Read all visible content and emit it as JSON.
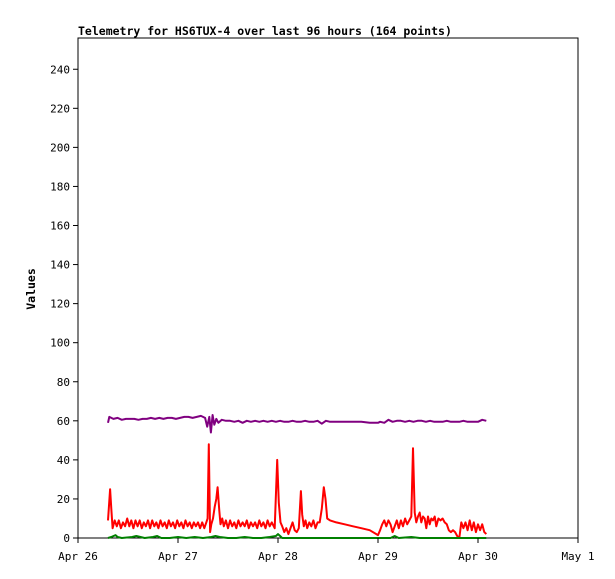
{
  "title": "Telemetry for HS6TUX-4 over last 96 hours (164 points)",
  "chart_data": {
    "type": "line",
    "title": "Telemetry for HS6TUX-4 over last 96 hours (164 points)",
    "xlabel": "",
    "ylabel": "Values",
    "xlim": [
      "2025-04-26 00:00",
      "2025-05-01 00:00"
    ],
    "ylim": [
      0,
      256
    ],
    "grid": false,
    "legend": "none",
    "x_ticks": [
      "Apr 26",
      "Apr 27",
      "Apr 28",
      "Apr 29",
      "Apr 30",
      "May 1"
    ],
    "y_ticks": [
      0,
      20,
      40,
      60,
      80,
      100,
      120,
      140,
      160,
      180,
      200,
      220,
      240
    ],
    "series": [
      {
        "color": "#800080",
        "points": [
          [
            7.2,
            59
          ],
          [
            7.5,
            62
          ],
          [
            8.5,
            61
          ],
          [
            9.5,
            61.5
          ],
          [
            10.5,
            60.5
          ],
          [
            11.5,
            61
          ],
          [
            12.5,
            61
          ],
          [
            13.5,
            61
          ],
          [
            14.5,
            60.5
          ],
          [
            15.5,
            61
          ],
          [
            16.5,
            61
          ],
          [
            17.5,
            61.5
          ],
          [
            18.5,
            61
          ],
          [
            19.5,
            61.5
          ],
          [
            20.5,
            61
          ],
          [
            21.5,
            61.5
          ],
          [
            22.5,
            61.5
          ],
          [
            23.5,
            61
          ],
          [
            24.5,
            61.5
          ],
          [
            25.5,
            62
          ],
          [
            26.5,
            62
          ],
          [
            27.5,
            61.5
          ],
          [
            28.5,
            62
          ],
          [
            29.5,
            62.5
          ],
          [
            30.5,
            61.5
          ],
          [
            31.0,
            57
          ],
          [
            31.5,
            62
          ],
          [
            31.9,
            54
          ],
          [
            32.3,
            63
          ],
          [
            32.7,
            58
          ],
          [
            33.2,
            61
          ],
          [
            33.7,
            59
          ],
          [
            34.5,
            60.5
          ],
          [
            35.5,
            60
          ],
          [
            36.5,
            60
          ],
          [
            37.5,
            59.5
          ],
          [
            38.5,
            60
          ],
          [
            39.5,
            59
          ],
          [
            40.5,
            60
          ],
          [
            41.5,
            59.5
          ],
          [
            42.5,
            60
          ],
          [
            43.5,
            59.5
          ],
          [
            44.5,
            60
          ],
          [
            45.5,
            59.5
          ],
          [
            46.5,
            60
          ],
          [
            47.5,
            59.5
          ],
          [
            48.5,
            60
          ],
          [
            49.5,
            59.5
          ],
          [
            50.5,
            59.5
          ],
          [
            51.5,
            60
          ],
          [
            52.5,
            59.5
          ],
          [
            53.5,
            59.5
          ],
          [
            54.5,
            60
          ],
          [
            55.5,
            59.5
          ],
          [
            56.5,
            59.5
          ],
          [
            57.5,
            60
          ],
          [
            58.5,
            58.5
          ],
          [
            59.5,
            60
          ],
          [
            60.5,
            59.5
          ],
          [
            61.5,
            59.5
          ],
          [
            62.5,
            59.5
          ],
          [
            64,
            59.5
          ],
          [
            66,
            59.5
          ],
          [
            68,
            59.5
          ],
          [
            70,
            59
          ],
          [
            72,
            59
          ],
          [
            72.5,
            59.5
          ],
          [
            73.5,
            59
          ],
          [
            74.5,
            60.5
          ],
          [
            75.5,
            59.5
          ],
          [
            76.5,
            60
          ],
          [
            77.5,
            60
          ],
          [
            78.5,
            59.5
          ],
          [
            79.5,
            60
          ],
          [
            80.5,
            59.5
          ],
          [
            81.5,
            60
          ],
          [
            82.5,
            60
          ],
          [
            83.5,
            59.5
          ],
          [
            84.5,
            60
          ],
          [
            85.5,
            59.5
          ],
          [
            86.5,
            59.5
          ],
          [
            87.5,
            59.5
          ],
          [
            88.5,
            60
          ],
          [
            89.5,
            59.5
          ],
          [
            90.5,
            59.5
          ],
          [
            91.5,
            59.5
          ],
          [
            92.5,
            60
          ],
          [
            93.5,
            59.5
          ],
          [
            94.5,
            59.5
          ],
          [
            95.5,
            59.5
          ],
          [
            96,
            59.5
          ],
          [
            97,
            60.5
          ],
          [
            98,
            60
          ]
        ]
      },
      {
        "color": "#ff0000",
        "points": [
          [
            7.2,
            9
          ],
          [
            7.7,
            25
          ],
          [
            8.0,
            15
          ],
          [
            8.3,
            5
          ],
          [
            8.8,
            9
          ],
          [
            9.3,
            6
          ],
          [
            9.8,
            9
          ],
          [
            10.3,
            5
          ],
          [
            10.8,
            8
          ],
          [
            11.3,
            6
          ],
          [
            11.8,
            10
          ],
          [
            12.3,
            6
          ],
          [
            12.8,
            9
          ],
          [
            13.3,
            5
          ],
          [
            13.8,
            9
          ],
          [
            14.3,
            6
          ],
          [
            14.8,
            9
          ],
          [
            15.3,
            5
          ],
          [
            15.8,
            8
          ],
          [
            16.3,
            6
          ],
          [
            16.8,
            9
          ],
          [
            17.3,
            5
          ],
          [
            17.8,
            9
          ],
          [
            18.3,
            6
          ],
          [
            18.8,
            8
          ],
          [
            19.3,
            5
          ],
          [
            19.8,
            9
          ],
          [
            20.3,
            6
          ],
          [
            20.8,
            8
          ],
          [
            21.3,
            5
          ],
          [
            21.8,
            9
          ],
          [
            22.3,
            6
          ],
          [
            22.8,
            8
          ],
          [
            23.3,
            5
          ],
          [
            23.8,
            9
          ],
          [
            24.3,
            6
          ],
          [
            24.8,
            8
          ],
          [
            25.3,
            5
          ],
          [
            25.8,
            9
          ],
          [
            26.3,
            6
          ],
          [
            26.8,
            8
          ],
          [
            27.3,
            5
          ],
          [
            27.8,
            8
          ],
          [
            28.3,
            6
          ],
          [
            28.8,
            8
          ],
          [
            29.3,
            5
          ],
          [
            29.8,
            8
          ],
          [
            30.3,
            5
          ],
          [
            30.8,
            8
          ],
          [
            31.1,
            10
          ],
          [
            31.4,
            48
          ],
          [
            31.7,
            3
          ],
          [
            32.0,
            7
          ],
          [
            32.4,
            10
          ],
          [
            32.8,
            16
          ],
          [
            33.2,
            20
          ],
          [
            33.5,
            26
          ],
          [
            33.9,
            14
          ],
          [
            34.2,
            7
          ],
          [
            34.6,
            10
          ],
          [
            35.0,
            6
          ],
          [
            35.5,
            9
          ],
          [
            36.0,
            5
          ],
          [
            36.5,
            9
          ],
          [
            37.0,
            6
          ],
          [
            37.5,
            8
          ],
          [
            38.0,
            5
          ],
          [
            38.5,
            9
          ],
          [
            39.0,
            6
          ],
          [
            39.5,
            8
          ],
          [
            40.0,
            6
          ],
          [
            40.5,
            9
          ],
          [
            41.0,
            5
          ],
          [
            41.5,
            8
          ],
          [
            42.0,
            6
          ],
          [
            42.5,
            8
          ],
          [
            43.0,
            5
          ],
          [
            43.5,
            9
          ],
          [
            44.0,
            6
          ],
          [
            44.5,
            8
          ],
          [
            45.0,
            5
          ],
          [
            45.5,
            9
          ],
          [
            46.0,
            6
          ],
          [
            46.5,
            8
          ],
          [
            47.2,
            5
          ],
          [
            47.8,
            40
          ],
          [
            48.2,
            18
          ],
          [
            48.6,
            8
          ],
          [
            49.0,
            6
          ],
          [
            49.5,
            3
          ],
          [
            50.0,
            5
          ],
          [
            50.5,
            2
          ],
          [
            51.0,
            5
          ],
          [
            51.5,
            8
          ],
          [
            52.0,
            4
          ],
          [
            52.5,
            3
          ],
          [
            53.0,
            5
          ],
          [
            53.5,
            24
          ],
          [
            53.8,
            12
          ],
          [
            54.2,
            6
          ],
          [
            54.6,
            9
          ],
          [
            55.0,
            5
          ],
          [
            55.5,
            8
          ],
          [
            56.0,
            6
          ],
          [
            56.5,
            9
          ],
          [
            57.0,
            5
          ],
          [
            57.5,
            8
          ],
          [
            58.0,
            8
          ],
          [
            58.5,
            15
          ],
          [
            59.0,
            26
          ],
          [
            59.4,
            20
          ],
          [
            59.8,
            10
          ],
          [
            60.5,
            9
          ],
          [
            62,
            8
          ],
          [
            64,
            7
          ],
          [
            66,
            6
          ],
          [
            68,
            5
          ],
          [
            70,
            4
          ],
          [
            72,
            1.5
          ],
          [
            72.5,
            4
          ],
          [
            73.0,
            7
          ],
          [
            73.5,
            9
          ],
          [
            74.0,
            6
          ],
          [
            74.5,
            9
          ],
          [
            75.0,
            7
          ],
          [
            75.5,
            3
          ],
          [
            76.0,
            6
          ],
          [
            76.5,
            9
          ],
          [
            77.0,
            5
          ],
          [
            77.5,
            9
          ],
          [
            78.0,
            6
          ],
          [
            78.5,
            10
          ],
          [
            79.0,
            7
          ],
          [
            79.5,
            9
          ],
          [
            80.0,
            11
          ],
          [
            80.4,
            46
          ],
          [
            80.8,
            13
          ],
          [
            81.2,
            8
          ],
          [
            81.6,
            11
          ],
          [
            82.0,
            13
          ],
          [
            82.4,
            8
          ],
          [
            82.8,
            11
          ],
          [
            83.2,
            10
          ],
          [
            83.6,
            5
          ],
          [
            84.0,
            11
          ],
          [
            84.4,
            7
          ],
          [
            84.8,
            10
          ],
          [
            85.2,
            9
          ],
          [
            85.6,
            11
          ],
          [
            86.0,
            6
          ],
          [
            86.5,
            10
          ],
          [
            87.0,
            9
          ],
          [
            87.5,
            10
          ],
          [
            88.0,
            8
          ],
          [
            88.5,
            7
          ],
          [
            89.0,
            4
          ],
          [
            89.5,
            3
          ],
          [
            90.0,
            4
          ],
          [
            90.5,
            3
          ],
          [
            91.0,
            1
          ],
          [
            91.5,
            0
          ],
          [
            92.0,
            8
          ],
          [
            92.5,
            5
          ],
          [
            93.0,
            8
          ],
          [
            93.5,
            4
          ],
          [
            94.0,
            9
          ],
          [
            94.5,
            4
          ],
          [
            95.0,
            8
          ],
          [
            95.5,
            3
          ],
          [
            96.0,
            7
          ],
          [
            96.5,
            4
          ],
          [
            97,
            7
          ],
          [
            97.5,
            3
          ],
          [
            98,
            2
          ]
        ]
      },
      {
        "color": "#008000",
        "points": [
          [
            7.2,
            0
          ],
          [
            8.0,
            0.5
          ],
          [
            9.0,
            1.5
          ],
          [
            9.5,
            0.5
          ],
          [
            10.5,
            0
          ],
          [
            13,
            0.5
          ],
          [
            14,
            1
          ],
          [
            16,
            0
          ],
          [
            18,
            0.5
          ],
          [
            19,
            1
          ],
          [
            20,
            0
          ],
          [
            22,
            0
          ],
          [
            24,
            0.5
          ],
          [
            26,
            0
          ],
          [
            28,
            0.5
          ],
          [
            30,
            0
          ],
          [
            32,
            0.5
          ],
          [
            33,
            1
          ],
          [
            34,
            0.5
          ],
          [
            36,
            0
          ],
          [
            38,
            0
          ],
          [
            40,
            0.5
          ],
          [
            42,
            0
          ],
          [
            44,
            0
          ],
          [
            46,
            0.5
          ],
          [
            47.5,
            1
          ],
          [
            48.0,
            2
          ],
          [
            48.5,
            1
          ],
          [
            49,
            0
          ],
          [
            52,
            0
          ],
          [
            56,
            0
          ],
          [
            60,
            0
          ],
          [
            64,
            0
          ],
          [
            68,
            0
          ],
          [
            72,
            0
          ],
          [
            75,
            0
          ],
          [
            76,
            1
          ],
          [
            77,
            0
          ],
          [
            80,
            0.5
          ],
          [
            82,
            0
          ],
          [
            86,
            0
          ],
          [
            90,
            0
          ],
          [
            94,
            0
          ],
          [
            98,
            0
          ]
        ]
      }
    ]
  }
}
